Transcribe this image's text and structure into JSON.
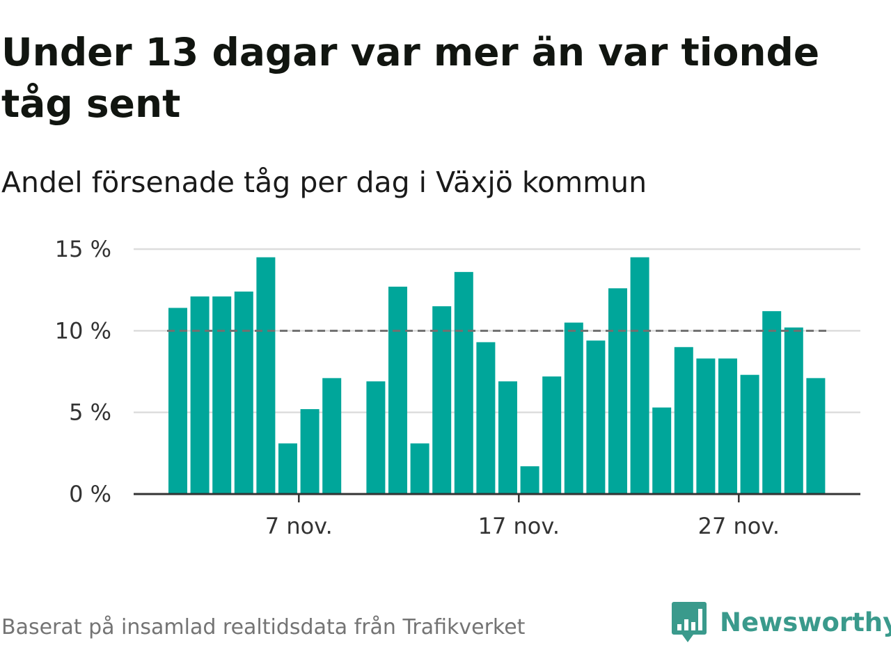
{
  "title": "Under 13 dagar var mer än var tionde tåg sent",
  "subtitle": "Andel försenade tåg per dag i Växjö kommun",
  "source": "Baserat på insamlad realtidsdata från Trafikverket",
  "brand": {
    "name": "Newsworthy",
    "color": "#3a9a8c"
  },
  "colors": {
    "bar": "#00a69a",
    "grid": "#dddddd",
    "axis": "#333333",
    "threshold": "#707070"
  },
  "chart_data": {
    "type": "bar",
    "x": [
      1,
      2,
      3,
      4,
      5,
      6,
      7,
      8,
      9,
      10,
      11,
      12,
      13,
      14,
      15,
      16,
      17,
      18,
      19,
      20,
      21,
      22,
      23,
      24,
      25,
      26,
      27,
      28,
      29,
      30
    ],
    "values": [
      11.4,
      12.1,
      12.1,
      12.4,
      14.5,
      3.1,
      5.2,
      7.1,
      null,
      6.9,
      12.7,
      3.1,
      11.5,
      13.6,
      9.3,
      6.9,
      1.7,
      7.2,
      10.5,
      9.4,
      12.6,
      14.5,
      5.3,
      9.0,
      8.3,
      8.3,
      7.3,
      11.2,
      10.2,
      7.1
    ],
    "ylim": [
      0,
      15
    ],
    "y_ticks": [
      0,
      5,
      10,
      15
    ],
    "y_tick_labels": [
      "0 %",
      "5 %",
      "10 %",
      "15 %"
    ],
    "x_ticks": [
      7,
      17,
      27
    ],
    "x_tick_labels": [
      "7 nov.",
      "17 nov.",
      "27 nov."
    ],
    "threshold": 10,
    "threshold_style": "dashed",
    "grid": true,
    "xlabel": "",
    "ylabel": ""
  }
}
